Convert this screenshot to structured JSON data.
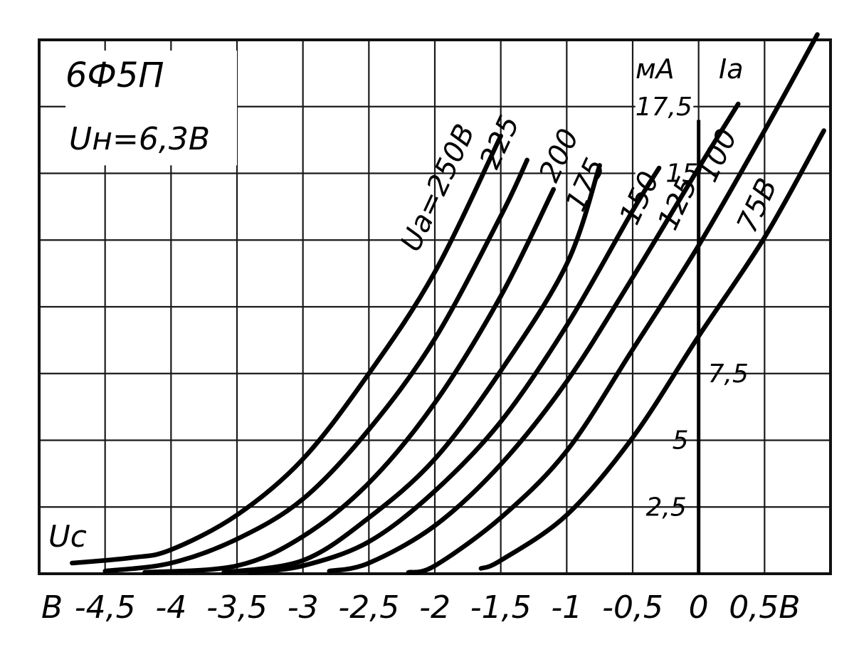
{
  "chart_data": {
    "type": "line",
    "title": "6Ф5П",
    "subtitle": "Uн=6,3В",
    "xlabel": "Uс",
    "ylabel_unit": "мА",
    "ylabel": "Iа",
    "x_unit": "В",
    "xlim": [
      -5,
      1
    ],
    "ylim": [
      0,
      20
    ],
    "grid": true,
    "x_ticks": [
      {
        "value": -4.5,
        "label": "-4,5"
      },
      {
        "value": -4,
        "label": "-4"
      },
      {
        "value": -3.5,
        "label": "-3,5"
      },
      {
        "value": -3,
        "label": "-3"
      },
      {
        "value": -2.5,
        "label": "-2,5"
      },
      {
        "value": -2,
        "label": "-2"
      },
      {
        "value": -1.5,
        "label": "-1,5"
      },
      {
        "value": -1,
        "label": "-1"
      },
      {
        "value": -0.5,
        "label": "-0,5"
      },
      {
        "value": 0,
        "label": "0"
      },
      {
        "value": 0.5,
        "label": "0,5В"
      }
    ],
    "y_ticks": [
      {
        "value": 2.5,
        "label": "2,5"
      },
      {
        "value": 5,
        "label": "5"
      },
      {
        "value": 7.5,
        "label": "7,5"
      },
      {
        "value": 15,
        "label": "15"
      },
      {
        "value": 17.5,
        "label": "17,5"
      }
    ],
    "series": [
      {
        "name": "Uа=250В",
        "points": [
          [
            -4.75,
            0.4
          ],
          [
            -4.3,
            0.6
          ],
          [
            -4,
            0.9
          ],
          [
            -3.5,
            2.2
          ],
          [
            -3,
            4.3
          ],
          [
            -2.5,
            7.5
          ],
          [
            -2,
            11.3
          ],
          [
            -1.5,
            16.4
          ]
        ]
      },
      {
        "name": "225",
        "points": [
          [
            -4.5,
            0.1
          ],
          [
            -4,
            0.4
          ],
          [
            -3.5,
            1.3
          ],
          [
            -3,
            2.8
          ],
          [
            -2.5,
            5.4
          ],
          [
            -2,
            8.8
          ],
          [
            -1.5,
            13.4
          ],
          [
            -1.3,
            15.5
          ]
        ]
      },
      {
        "name": "200",
        "points": [
          [
            -4.2,
            0.05
          ],
          [
            -3.5,
            0.3
          ],
          [
            -3,
            1.4
          ],
          [
            -2.5,
            3.4
          ],
          [
            -2,
            6.4
          ],
          [
            -1.5,
            10.4
          ],
          [
            -1.1,
            14.4
          ]
        ]
      },
      {
        "name": "175",
        "points": [
          [
            -3.6,
            0.05
          ],
          [
            -3,
            0.5
          ],
          [
            -2.5,
            2.1
          ],
          [
            -2,
            4.3
          ],
          [
            -1.5,
            7.6
          ],
          [
            -1,
            11.6
          ],
          [
            -0.75,
            15.3
          ]
        ]
      },
      {
        "name": "150",
        "points": [
          [
            -3.4,
            0.05
          ],
          [
            -3,
            0.3
          ],
          [
            -2.5,
            1.2
          ],
          [
            -2,
            3.1
          ],
          [
            -1.5,
            5.7
          ],
          [
            -1,
            9.3
          ],
          [
            -0.5,
            13.6
          ],
          [
            -0.3,
            15.2
          ]
        ]
      },
      {
        "name": "125",
        "points": [
          [
            -2.8,
            0.1
          ],
          [
            -2.5,
            0.4
          ],
          [
            -2,
            1.8
          ],
          [
            -1.5,
            4.1
          ],
          [
            -1,
            7.2
          ],
          [
            -0.5,
            11.1
          ],
          [
            0,
            15.2
          ],
          [
            0.3,
            17.6
          ]
        ]
      },
      {
        "name": "100",
        "points": [
          [
            -2.2,
            0.05
          ],
          [
            -2,
            0.3
          ],
          [
            -1.5,
            2.1
          ],
          [
            -1,
            4.6
          ],
          [
            -0.5,
            8.4
          ],
          [
            0,
            12.3
          ],
          [
            0.5,
            16.6
          ],
          [
            0.9,
            20.2
          ]
        ]
      },
      {
        "name": "75В",
        "points": [
          [
            -1.65,
            0.2
          ],
          [
            -1.5,
            0.5
          ],
          [
            -1,
            2.2
          ],
          [
            -0.5,
            5.1
          ],
          [
            0,
            8.9
          ],
          [
            0.5,
            12.6
          ],
          [
            0.95,
            16.6
          ]
        ]
      }
    ]
  }
}
